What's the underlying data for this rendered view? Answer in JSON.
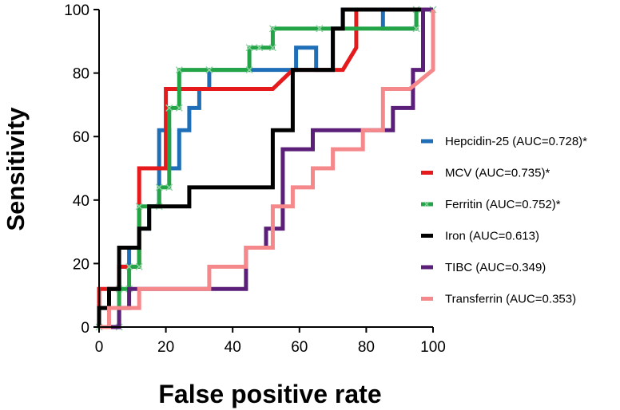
{
  "chart_data": {
    "type": "line",
    "title": "",
    "xlabel": "False positive rate",
    "ylabel": "Sensitivity",
    "xlim": [
      0,
      100
    ],
    "ylim": [
      0,
      100
    ],
    "xticks": [
      "0",
      "20",
      "40",
      "60",
      "80",
      "100"
    ],
    "yticks": [
      "0",
      "20",
      "40",
      "60",
      "80",
      "100"
    ],
    "grid": false,
    "legend_position": "right",
    "series": [
      {
        "name": "Hepcidin-25 (AUC=0.728)*",
        "color": "#1f6fb8",
        "marker": "none",
        "x": [
          0,
          0,
          3,
          3,
          6,
          6,
          9,
          9,
          12,
          12,
          15,
          15,
          18,
          18,
          21,
          21,
          24,
          24,
          27,
          27,
          30,
          30,
          33,
          33,
          36,
          36,
          59,
          59,
          65,
          65,
          70,
          70,
          73,
          73,
          85,
          85,
          95,
          95,
          100
        ],
        "y": [
          0,
          6,
          6,
          12,
          12,
          19,
          19,
          25,
          25,
          31,
          31,
          38,
          38,
          62,
          62,
          50,
          50,
          62,
          62,
          69,
          69,
          75,
          75,
          81,
          81,
          81,
          81,
          88,
          88,
          81,
          81,
          94,
          94,
          100,
          100,
          94,
          94,
          100,
          100
        ]
      },
      {
        "name": "MCV (AUC=0.735)*",
        "color": "#e41a1c",
        "marker": "none",
        "x": [
          0,
          0,
          6,
          6,
          12,
          12,
          18,
          18,
          20,
          20,
          24,
          24,
          52,
          52,
          58,
          58,
          70,
          70,
          73,
          73,
          77,
          77,
          100
        ],
        "y": [
          0,
          12,
          12,
          19,
          19,
          50,
          50,
          50,
          50,
          75,
          75,
          75,
          75,
          75,
          81,
          81,
          81,
          81,
          81,
          81,
          88,
          100,
          100
        ]
      },
      {
        "name": "Ferritin (AUC=0.752)*",
        "color": "#22a447",
        "marker": "x",
        "x": [
          0,
          6,
          6,
          9,
          9,
          12,
          12,
          18,
          18,
          21,
          21,
          24,
          24,
          33,
          33,
          45,
          45,
          48,
          48,
          52,
          52,
          66,
          66,
          95,
          95,
          100
        ],
        "y": [
          0,
          0,
          12,
          12,
          19,
          19,
          38,
          38,
          44,
          44,
          69,
          69,
          81,
          81,
          81,
          81,
          88,
          88,
          88,
          88,
          94,
          94,
          94,
          94,
          100,
          100
        ]
      },
      {
        "name": "Iron (AUC=0.613)",
        "color": "#000000",
        "marker": "none",
        "x": [
          0,
          0,
          3,
          3,
          6,
          6,
          12,
          12,
          15,
          15,
          18,
          18,
          27,
          27,
          52,
          52,
          58,
          58,
          70,
          70,
          73,
          73,
          100
        ],
        "y": [
          0,
          6,
          6,
          12,
          12,
          25,
          25,
          31,
          31,
          38,
          38,
          38,
          38,
          44,
          44,
          62,
          62,
          81,
          81,
          94,
          94,
          100,
          100
        ]
      },
      {
        "name": "TIBC (AUC=0.349)",
        "color": "#5b1f7a",
        "marker": "none",
        "x": [
          0,
          6,
          6,
          9,
          9,
          33,
          33,
          44,
          44,
          50,
          50,
          55,
          55,
          64,
          64,
          72,
          72,
          88,
          88,
          94,
          94,
          97,
          97,
          100
        ],
        "y": [
          0,
          0,
          6,
          6,
          12,
          12,
          12,
          12,
          25,
          25,
          31,
          31,
          56,
          56,
          62,
          62,
          62,
          62,
          69,
          69,
          81,
          81,
          100,
          100
        ]
      },
      {
        "name": "Transferrin (AUC=0.353)",
        "color": "#f4888a",
        "marker": "none",
        "x": [
          0,
          3,
          3,
          12,
          12,
          33,
          33,
          44,
          44,
          52,
          52,
          58,
          58,
          64,
          64,
          70,
          70,
          79,
          79,
          85,
          85,
          93,
          93,
          100,
          100
        ],
        "y": [
          0,
          0,
          6,
          6,
          12,
          12,
          19,
          19,
          25,
          25,
          38,
          38,
          44,
          44,
          50,
          50,
          56,
          56,
          62,
          62,
          75,
          75,
          75,
          81,
          100
        ]
      }
    ]
  }
}
